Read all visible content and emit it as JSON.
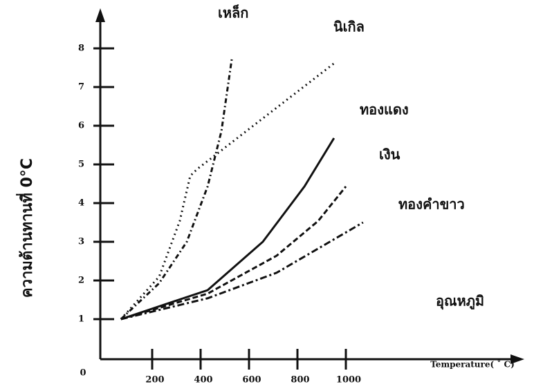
{
  "chart_data": {
    "type": "line",
    "y_label": "ความต้านทานที่ 0°C",
    "x_label": "Temperature( ˚ C)",
    "annotation": "อุณหภูมิ",
    "origin_label": "0",
    "xlim": [
      0,
      1700
    ],
    "ylim": [
      0,
      9
    ],
    "xticks": [
      200,
      400,
      600,
      800,
      1000
    ],
    "yticks": [
      1,
      2,
      3,
      4,
      5,
      6,
      7,
      8
    ],
    "series": [
      {
        "name": "เหล็ก",
        "color": "#111111",
        "dash": "7 4 2 4",
        "x": [
          71,
          229,
          343,
          429,
          486,
          529
        ],
        "values": [
          1.0,
          1.93,
          3.0,
          4.43,
          5.86,
          7.73
        ]
      },
      {
        "name": "นิเกิล",
        "color": "#111111",
        "dash": "2 5",
        "x": [
          71,
          229,
          314,
          357,
          386,
          957
        ],
        "values": [
          1.0,
          2.1,
          3.54,
          4.7,
          4.88,
          7.64
        ]
      },
      {
        "name": "ทองแดง",
        "color": "#111111",
        "dash": "none",
        "x": [
          71,
          429,
          657,
          829,
          951
        ],
        "values": [
          1.0,
          1.75,
          3.0,
          4.43,
          5.68
        ]
      },
      {
        "name": "เงิน",
        "color": "#111111",
        "dash": "8 4",
        "x": [
          71,
          429,
          714,
          886,
          1000
        ],
        "values": [
          1.0,
          1.66,
          2.64,
          3.54,
          4.43
        ]
      },
      {
        "name": "ทองคำขาว",
        "color": "#111111",
        "dash": "10 4 3 4",
        "x": [
          71,
          429,
          714,
          1071
        ],
        "values": [
          1.0,
          1.54,
          2.2,
          3.5
        ]
      }
    ]
  }
}
